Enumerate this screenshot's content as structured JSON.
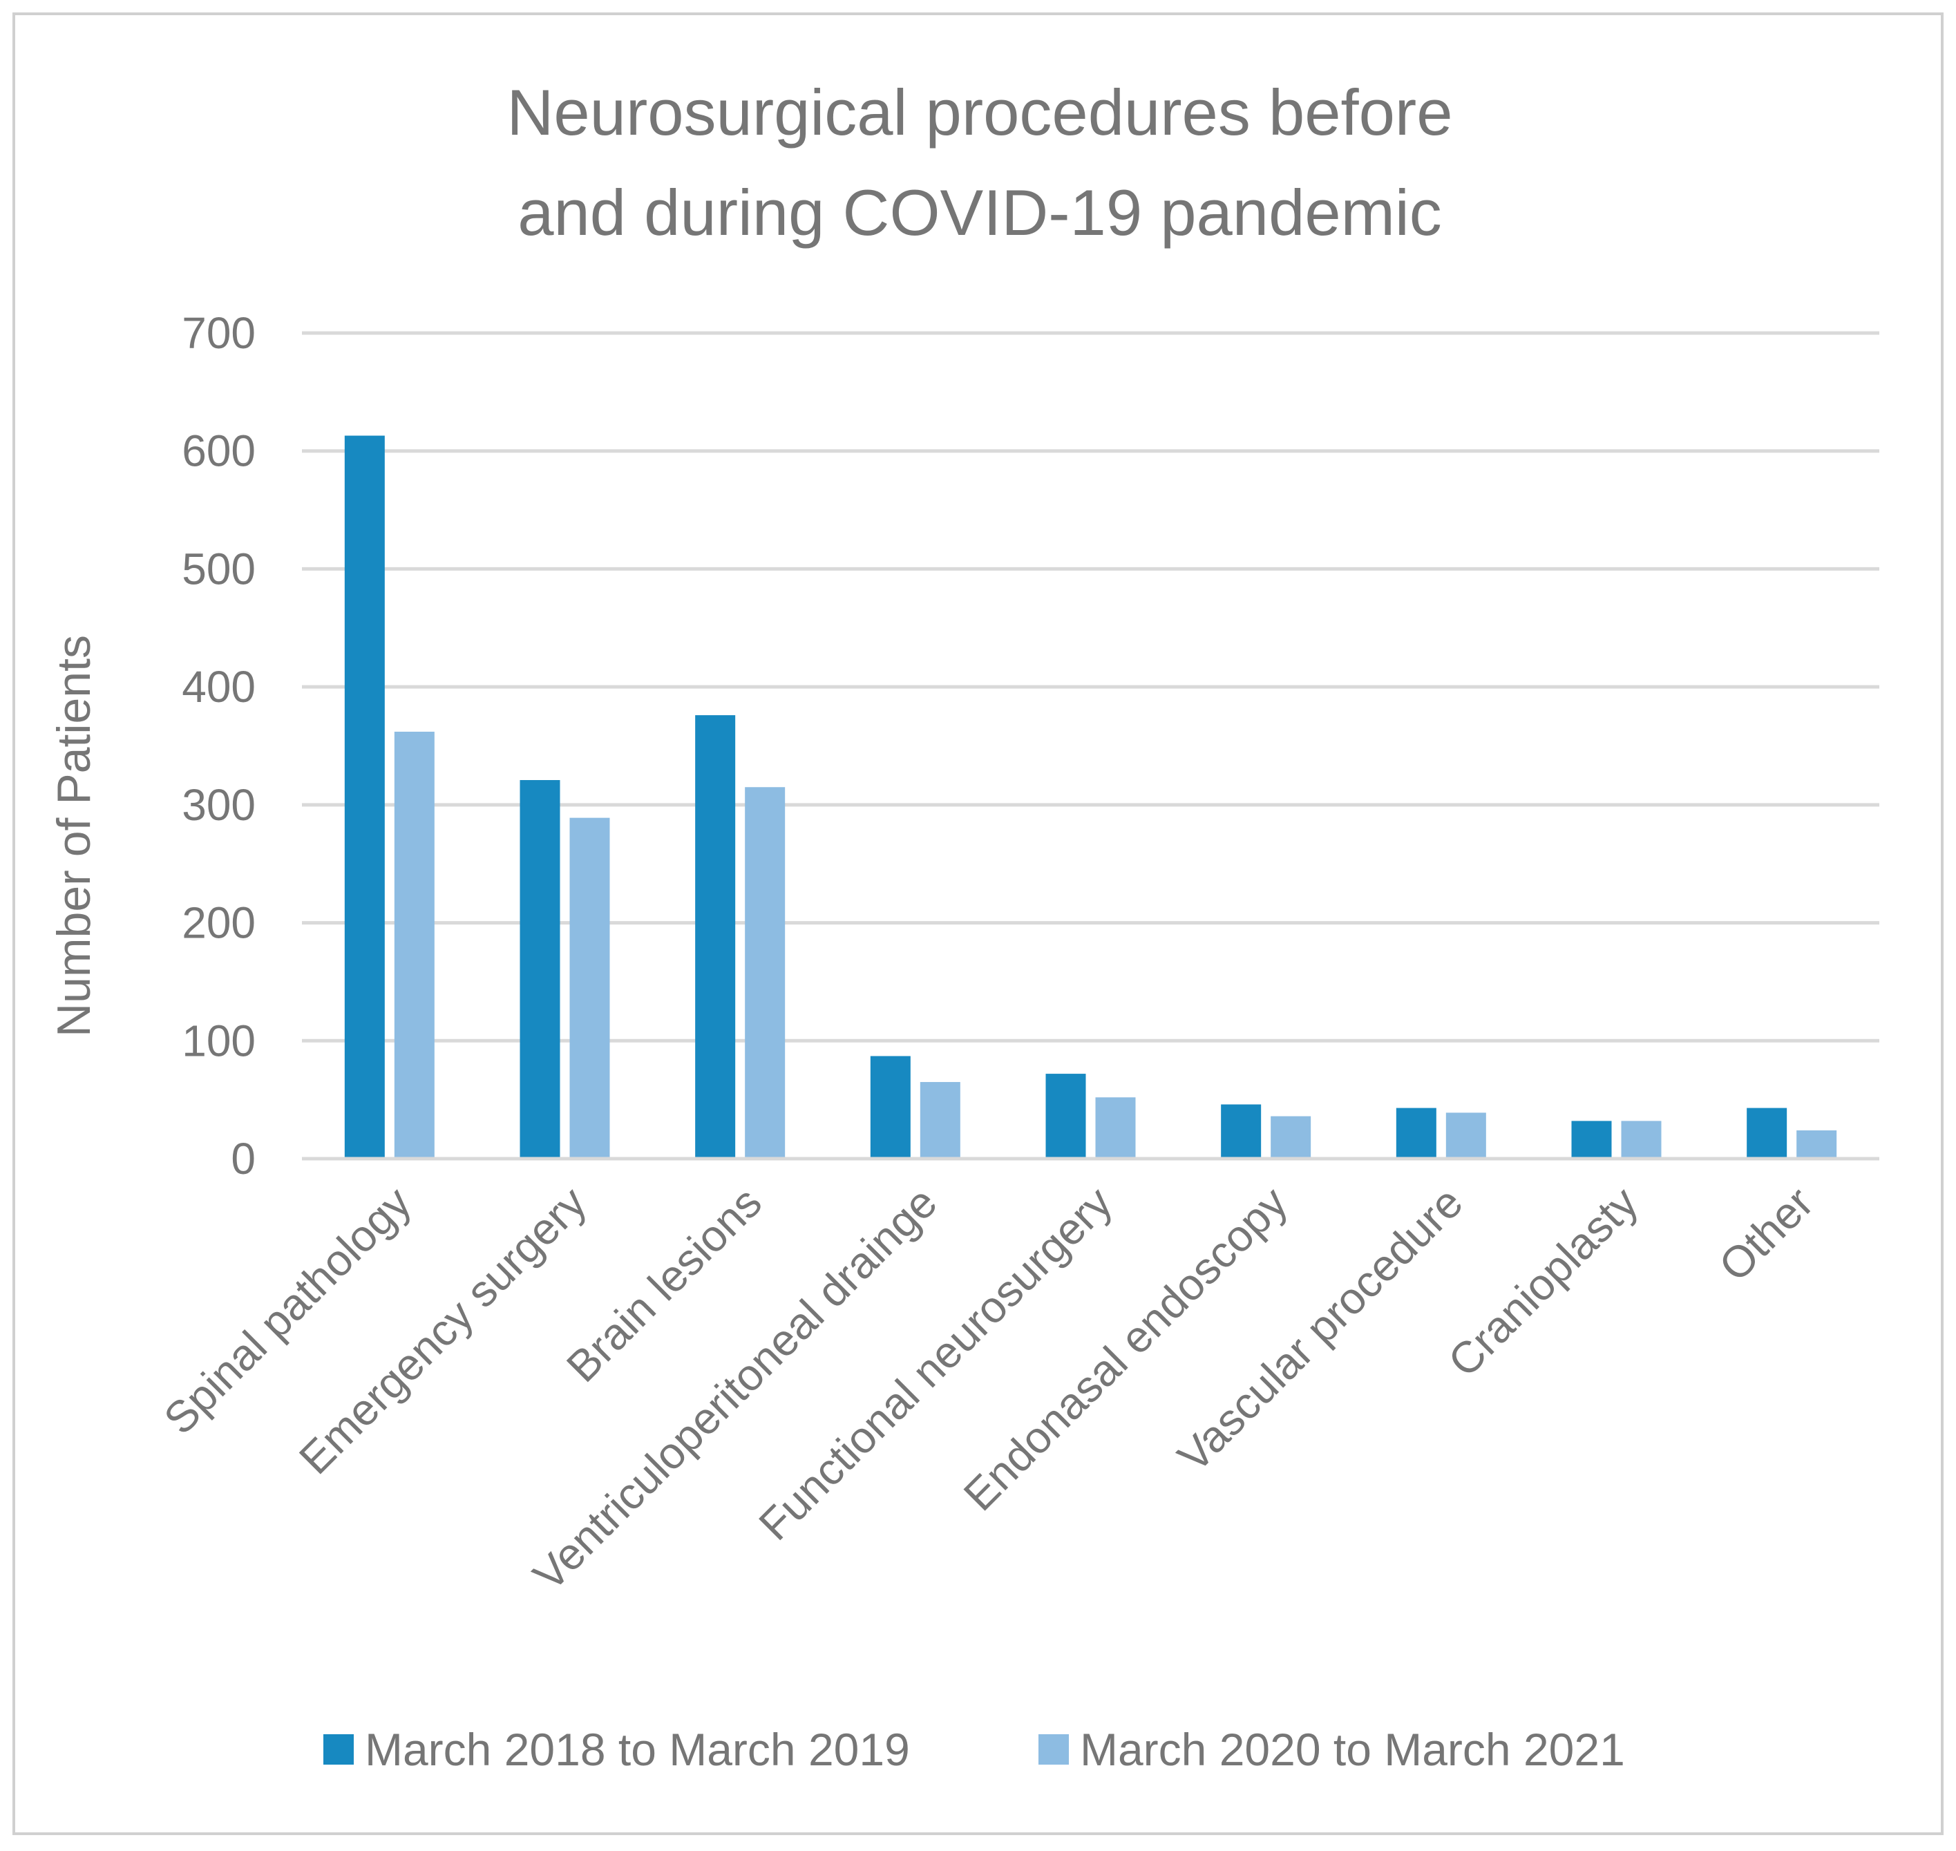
{
  "chart_data": {
    "type": "bar",
    "title_lines": [
      "Neurosurgical procedures before",
      "and during COVID-19 pandemic"
    ],
    "xlabel": "",
    "ylabel": "Number of Patients",
    "ylim": [
      0,
      700
    ],
    "yticks": [
      "0",
      "100",
      "200",
      "300",
      "400",
      "500",
      "600",
      "700"
    ],
    "categories": [
      "Spinal pathology",
      "Emergency surgery",
      "Brain lesions",
      "Ventriculoperitoneal drainge",
      "Functional neurosurgery",
      "Endonasal endoscopy",
      "Vascular procedure",
      "Cranioplasty",
      "Other"
    ],
    "series": [
      {
        "name": "March 2018 to March 2019",
        "color": "#1789C1",
        "values": [
          613,
          321,
          376,
          87,
          72,
          46,
          43,
          32,
          43
        ]
      },
      {
        "name": "March 2020 to March 2021",
        "color": "#8DBCE2",
        "values": [
          362,
          289,
          315,
          65,
          52,
          36,
          39,
          32,
          24
        ]
      }
    ],
    "grid": true,
    "legend": "bottom",
    "colors": {
      "gridline": "#D9D9D9",
      "text": "#767676",
      "border": "#D0D0D0"
    }
  }
}
